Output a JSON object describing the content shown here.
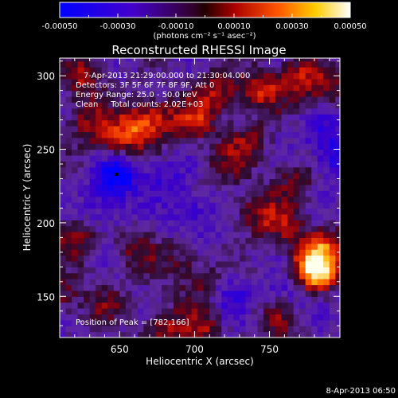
{
  "timestamp": "8-Apr-2013 06:50",
  "chart_data": {
    "type": "heatmap",
    "title": "Reconstructed RHESSI Image",
    "xlabel": "Heliocentric X (arcsec)",
    "ylabel": "Heliocentric Y (arcsec)",
    "xlim": [
      610,
      797
    ],
    "ylim": [
      122,
      312
    ],
    "x_ticks": [
      650,
      700,
      750
    ],
    "y_ticks": [
      150,
      200,
      250,
      300
    ],
    "grid": false,
    "colorbar": {
      "location": "top",
      "range": [
        -0.0005,
        0.0005
      ],
      "ticks": [
        "-0.00050",
        "-0.00030",
        "-0.00010",
        "0.00010",
        "0.00030",
        "0.00050"
      ],
      "units_label": "(photons cm⁻² s⁻¹ asec⁻²)",
      "colormap": "blue-purple-red-orange-yellow-white"
    },
    "annotations": [
      "7-Apr-2013 21:29:00.000 to 21:30:04.000",
      "Detectors: 3F 5F 6F 7F 8F 9F, Att 0",
      "Energy Range: 25.0 - 50.0 keV",
      "Clean     Total counts: 2.02E+03"
    ],
    "peak_label": "Position of Peak = [782,166]",
    "peak_position": [
      782,
      166
    ],
    "min_marker": [
      648,
      233
    ],
    "sources": [
      {
        "x": 782,
        "y": 166,
        "amp": 1.0
      },
      {
        "x": 776,
        "y": 178,
        "amp": 0.55
      },
      {
        "x": 790,
        "y": 184,
        "amp": 0.5
      },
      {
        "x": 758,
        "y": 200,
        "amp": 0.45
      },
      {
        "x": 740,
        "y": 208,
        "amp": 0.4
      },
      {
        "x": 745,
        "y": 290,
        "amp": 0.6
      },
      {
        "x": 770,
        "y": 300,
        "amp": 0.5
      },
      {
        "x": 788,
        "y": 290,
        "amp": 0.45
      },
      {
        "x": 660,
        "y": 264,
        "amp": 0.65
      },
      {
        "x": 675,
        "y": 272,
        "amp": 0.5
      },
      {
        "x": 645,
        "y": 255,
        "amp": 0.45
      },
      {
        "x": 700,
        "y": 270,
        "amp": 0.55
      },
      {
        "x": 715,
        "y": 290,
        "amp": 0.5
      },
      {
        "x": 625,
        "y": 300,
        "amp": 0.5
      },
      {
        "x": 628,
        "y": 270,
        "amp": 0.4
      },
      {
        "x": 735,
        "y": 255,
        "amp": 0.4
      },
      {
        "x": 720,
        "y": 240,
        "amp": 0.3
      },
      {
        "x": 705,
        "y": 160,
        "amp": 0.3
      },
      {
        "x": 690,
        "y": 175,
        "amp": 0.3
      },
      {
        "x": 660,
        "y": 180,
        "amp": 0.35
      },
      {
        "x": 620,
        "y": 190,
        "amp": 0.4
      },
      {
        "x": 612,
        "y": 150,
        "amp": 0.35
      },
      {
        "x": 640,
        "y": 145,
        "amp": 0.3
      },
      {
        "x": 680,
        "y": 130,
        "amp": 0.45
      },
      {
        "x": 705,
        "y": 128,
        "amp": 0.45
      },
      {
        "x": 755,
        "y": 135,
        "amp": 0.4
      },
      {
        "x": 765,
        "y": 230,
        "amp": 0.35
      },
      {
        "x": 648,
        "y": 233,
        "amp": -0.75
      },
      {
        "x": 795,
        "y": 245,
        "amp": -0.5
      },
      {
        "x": 700,
        "y": 205,
        "amp": -0.35
      },
      {
        "x": 725,
        "y": 150,
        "amp": -0.3
      },
      {
        "x": 785,
        "y": 265,
        "amp": -0.3
      },
      {
        "x": 640,
        "y": 210,
        "amp": -0.25
      },
      {
        "x": 680,
        "y": 230,
        "amp": -0.3
      },
      {
        "x": 760,
        "y": 150,
        "amp": -0.25
      }
    ]
  }
}
